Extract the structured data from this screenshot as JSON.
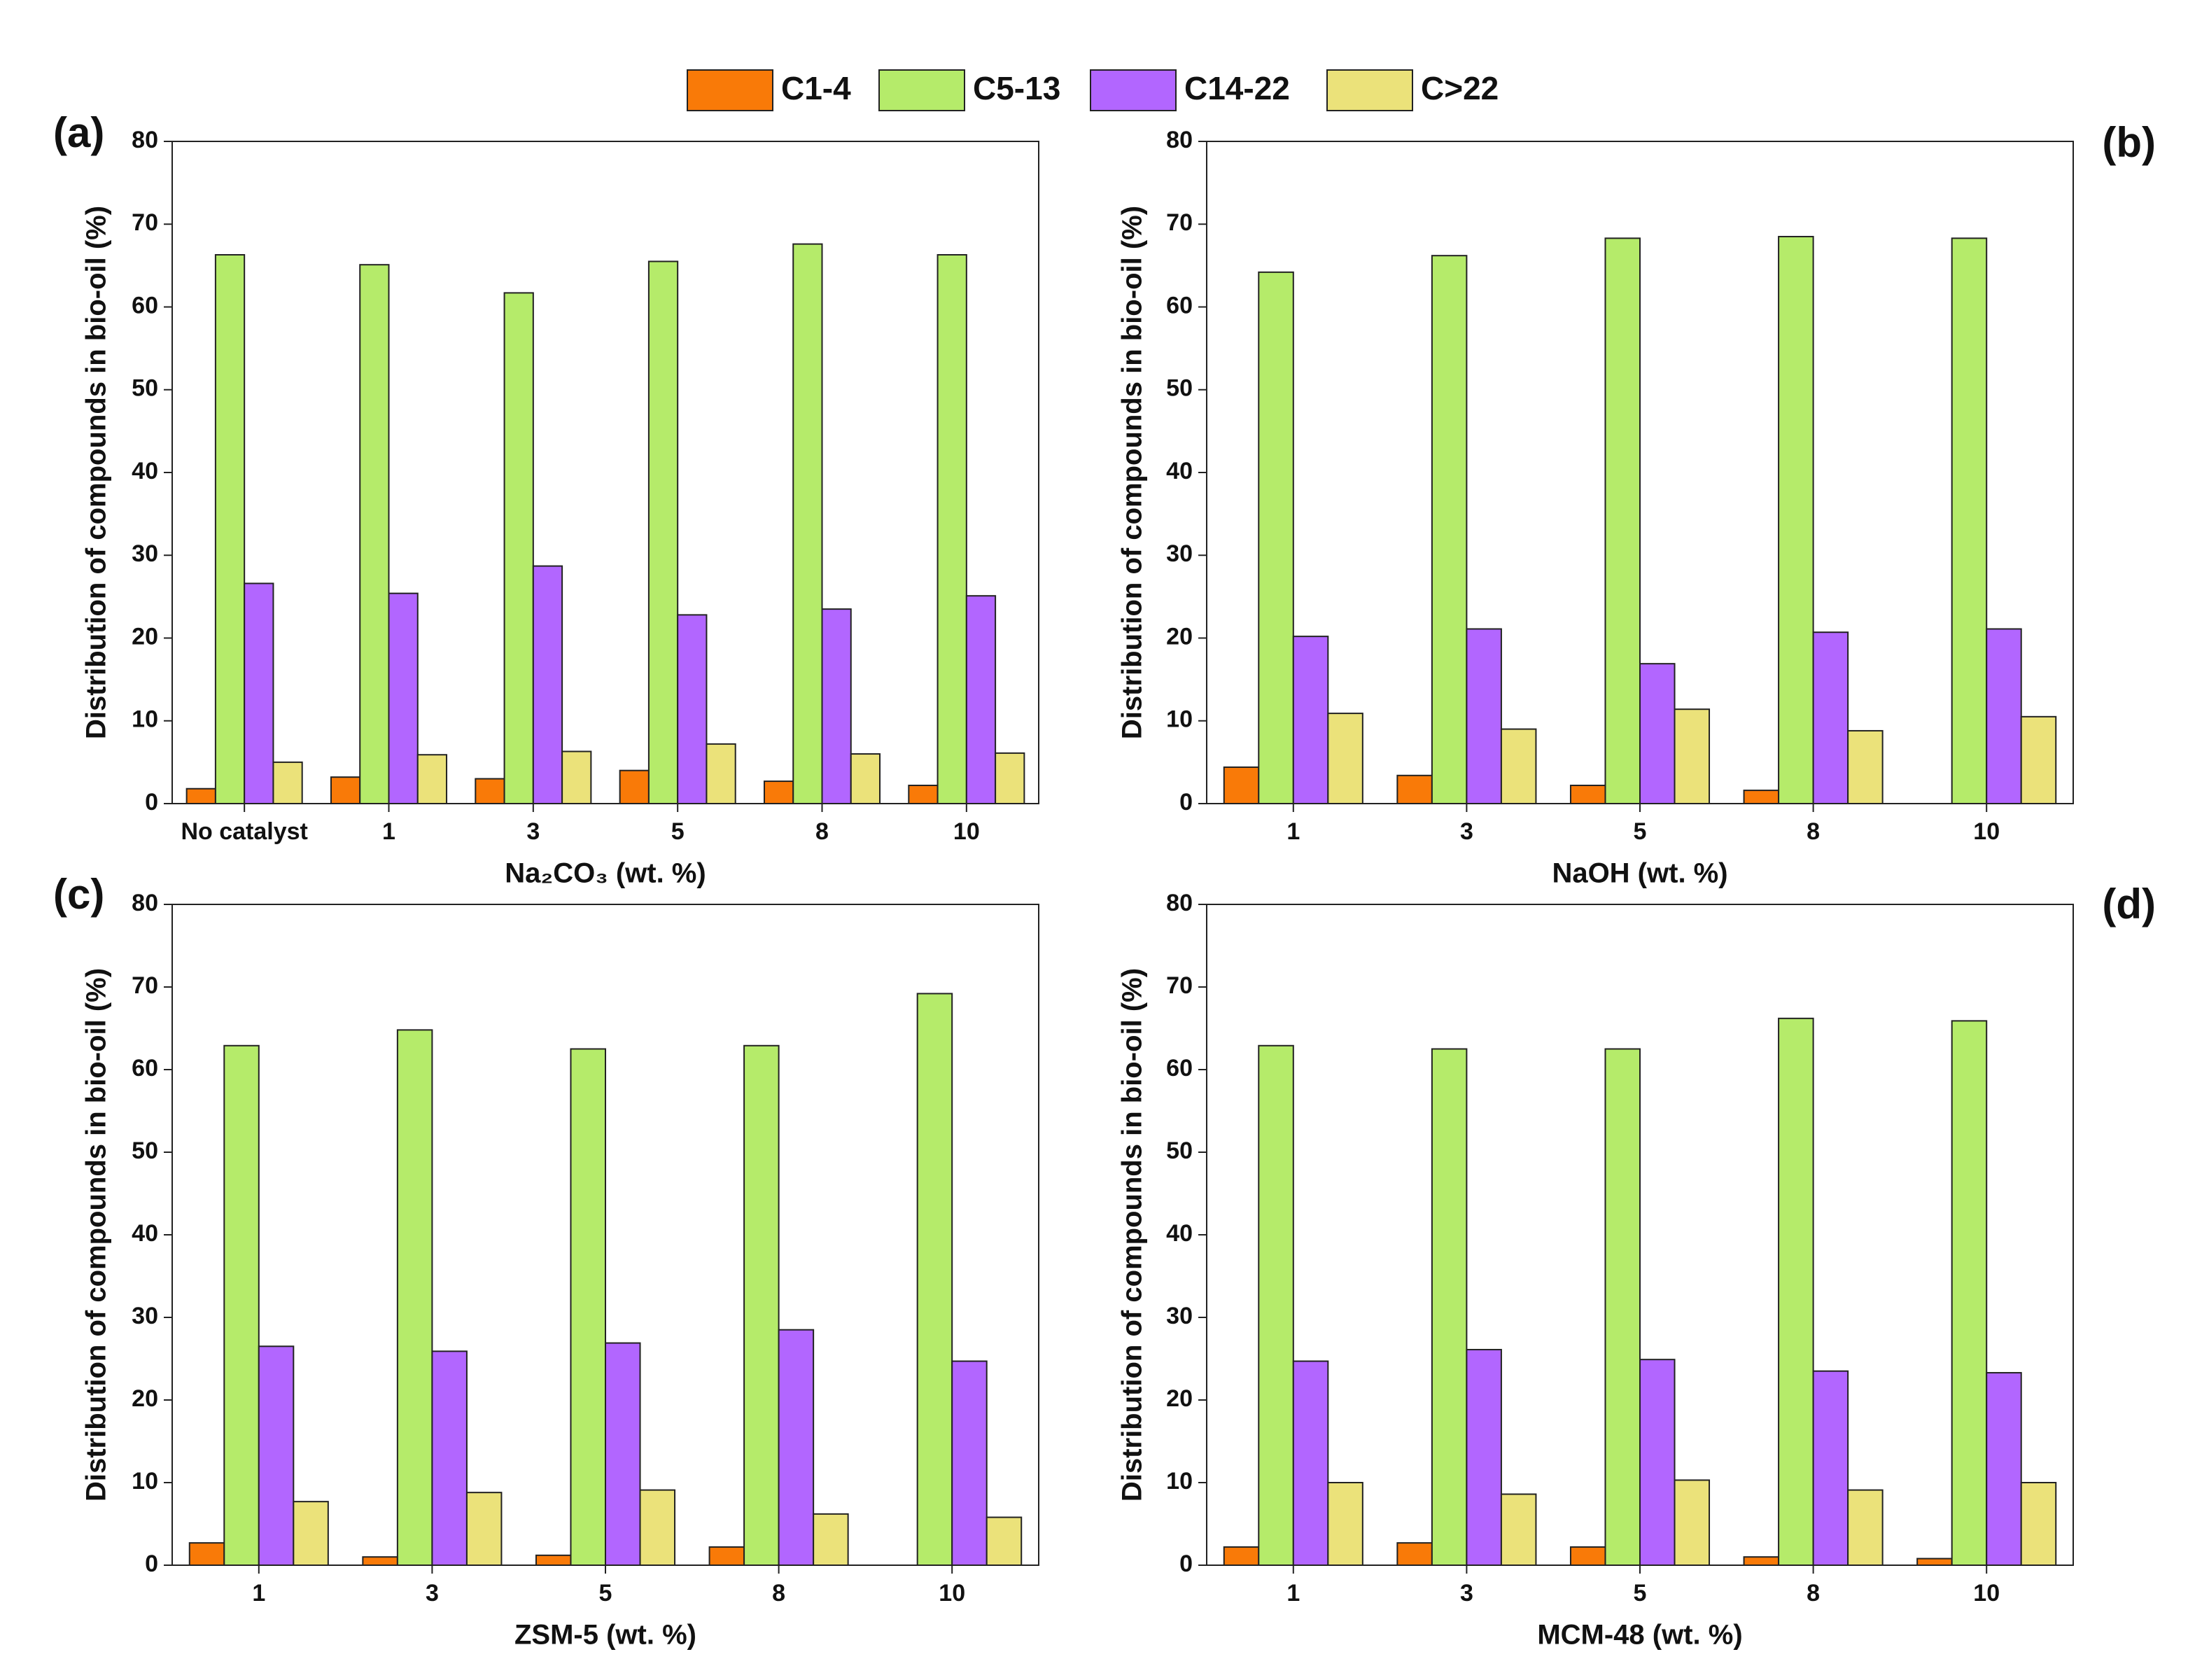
{
  "chart_data": [
    {
      "type": "bar",
      "panel_label": "(a)",
      "x_label": "Na₂CO₃ (wt. %)",
      "y_label": "Distribution of compounds in bio-oil (%)",
      "categories": [
        "No catalyst",
        "1",
        "3",
        "5",
        "8",
        "10"
      ],
      "series": [
        {
          "name": "C1-4",
          "color": "#f97a08",
          "values": [
            1.8,
            3.2,
            3.0,
            4.0,
            2.7,
            2.2
          ]
        },
        {
          "name": "C5-13",
          "color": "#b5eb6a",
          "values": [
            66.3,
            65.1,
            61.7,
            65.5,
            67.6,
            66.3
          ]
        },
        {
          "name": "C14-22",
          "color": "#b266ff",
          "values": [
            26.6,
            25.4,
            28.7,
            22.8,
            23.5,
            25.1
          ]
        },
        {
          "name": "C>22",
          "color": "#ebe27a",
          "values": [
            5.0,
            5.9,
            6.3,
            7.2,
            6.0,
            6.1
          ]
        }
      ],
      "ylim": [
        0,
        80
      ],
      "yticks": [
        0,
        10,
        20,
        30,
        40,
        50,
        60,
        70,
        80
      ]
    },
    {
      "type": "bar",
      "panel_label": "(b)",
      "x_label": "NaOH (wt. %)",
      "y_label": "Distribution of compounds in bio-oil (%)",
      "categories": [
        "1",
        "3",
        "5",
        "8",
        "10"
      ],
      "series": [
        {
          "name": "C1-4",
          "color": "#f97a08",
          "values": [
            4.4,
            3.4,
            2.2,
            1.6,
            0
          ]
        },
        {
          "name": "C5-13",
          "color": "#b5eb6a",
          "values": [
            64.2,
            66.2,
            68.3,
            68.5,
            68.3
          ]
        },
        {
          "name": "C14-22",
          "color": "#b266ff",
          "values": [
            20.2,
            21.1,
            16.9,
            20.7,
            21.1
          ]
        },
        {
          "name": "C>22",
          "color": "#ebe27a",
          "values": [
            10.9,
            9.0,
            11.4,
            8.8,
            10.5
          ]
        }
      ],
      "ylim": [
        0,
        80
      ],
      "yticks": [
        0,
        10,
        20,
        30,
        40,
        50,
        60,
        70,
        80
      ]
    },
    {
      "type": "bar",
      "panel_label": "(c)",
      "x_label": "ZSM-5 (wt. %)",
      "y_label": "Distribution of compounds in bio-oil (%)",
      "categories": [
        "1",
        "3",
        "5",
        "8",
        "10"
      ],
      "series": [
        {
          "name": "C1-4",
          "color": "#f97a08",
          "values": [
            2.7,
            1.0,
            1.2,
            2.2,
            0
          ]
        },
        {
          "name": "C5-13",
          "color": "#b5eb6a",
          "values": [
            62.9,
            64.8,
            62.5,
            62.9,
            69.2
          ]
        },
        {
          "name": "C14-22",
          "color": "#b266ff",
          "values": [
            26.5,
            25.9,
            26.9,
            28.5,
            24.7
          ]
        },
        {
          "name": "C>22",
          "color": "#ebe27a",
          "values": [
            7.7,
            8.8,
            9.1,
            6.2,
            5.8
          ]
        }
      ],
      "ylim": [
        0,
        80
      ],
      "yticks": [
        0,
        10,
        20,
        30,
        40,
        50,
        60,
        70,
        80
      ]
    },
    {
      "type": "bar",
      "panel_label": "(d)",
      "x_label": "MCM-48 (wt. %)",
      "y_label": "Distribution of compounds in bio-oil (%)",
      "categories": [
        "1",
        "3",
        "5",
        "8",
        "10"
      ],
      "series": [
        {
          "name": "C1-4",
          "color": "#f97a08",
          "values": [
            2.2,
            2.7,
            2.2,
            1.0,
            0.8
          ]
        },
        {
          "name": "C5-13",
          "color": "#b5eb6a",
          "values": [
            62.9,
            62.5,
            62.5,
            66.2,
            65.9
          ]
        },
        {
          "name": "C14-22",
          "color": "#b266ff",
          "values": [
            24.7,
            26.1,
            24.9,
            23.5,
            23.3
          ]
        },
        {
          "name": "C>22",
          "color": "#ebe27a",
          "values": [
            10.0,
            8.6,
            10.3,
            9.1,
            10.0
          ]
        }
      ],
      "ylim": [
        0,
        80
      ],
      "yticks": [
        0,
        10,
        20,
        30,
        40,
        50,
        60,
        70,
        80
      ]
    }
  ]
}
